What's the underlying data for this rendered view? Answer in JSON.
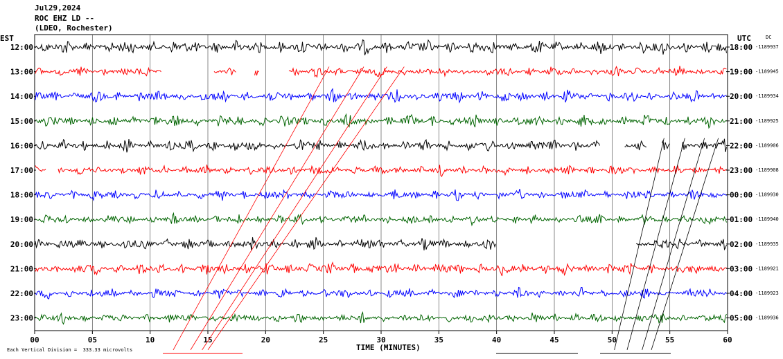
{
  "header": {
    "date": "Jul29,2024",
    "station": "ROC EHZ LD --",
    "network": "(LDEO, Rochester)",
    "left_tz": "EST",
    "right_tz": "UTC",
    "dc_label": "DC"
  },
  "footer": {
    "scale_note": "Each Vertical Division =  333.33 microvolts"
  },
  "chart_data": {
    "type": "line",
    "title": "ROC EHZ LD --",
    "xlabel": "TIME (MINUTES)",
    "xlim": [
      0,
      60
    ],
    "x_ticks": [
      "00",
      "05",
      "10",
      "15",
      "20",
      "25",
      "30",
      "35",
      "40",
      "45",
      "50",
      "55",
      "60"
    ],
    "grid": true,
    "trace_colors": [
      "#000000",
      "#ff0000",
      "#0000ff",
      "#006400"
    ],
    "rows": [
      {
        "est": "12:00",
        "utc": "18:00",
        "dc": "-1189937",
        "color": "#000000",
        "amp": 7,
        "gaps": []
      },
      {
        "est": "13:00",
        "utc": "19:00",
        "dc": "-1189945",
        "color": "#ff0000",
        "amp": 5,
        "gaps": [
          [
            11,
            15.5
          ],
          [
            17.5,
            19
          ],
          [
            19.5,
            22
          ]
        ]
      },
      {
        "est": "14:00",
        "utc": "20:00",
        "dc": "-1189934",
        "color": "#0000ff",
        "amp": 6,
        "gaps": []
      },
      {
        "est": "15:00",
        "utc": "21:00",
        "dc": "-1189925",
        "color": "#006400",
        "amp": 6,
        "gaps": []
      },
      {
        "est": "16:00",
        "utc": "22:00",
        "dc": "-1189906",
        "color": "#000000",
        "amp": 6,
        "gaps": [
          [
            49,
            51
          ],
          [
            53,
            54.3
          ],
          [
            55,
            56
          ]
        ]
      },
      {
        "est": "17:00",
        "utc": "23:00",
        "dc": "-1189908",
        "color": "#ff0000",
        "amp": 5,
        "gaps": [
          [
            1,
            2
          ]
        ]
      },
      {
        "est": "18:00",
        "utc": "00:00",
        "dc": "-1189930",
        "color": "#0000ff",
        "amp": 5,
        "gaps": []
      },
      {
        "est": "19:00",
        "utc": "01:00",
        "dc": "-1189940",
        "color": "#006400",
        "amp": 5,
        "gaps": []
      },
      {
        "est": "20:00",
        "utc": "02:00",
        "dc": "-1189935",
        "color": "#000000",
        "amp": 6,
        "gaps": [
          [
            40,
            52
          ]
        ]
      },
      {
        "est": "21:00",
        "utc": "03:00",
        "dc": "-1189921",
        "color": "#ff0000",
        "amp": 6,
        "gaps": []
      },
      {
        "est": "22:00",
        "utc": "04:00",
        "dc": "-1189923",
        "color": "#0000ff",
        "amp": 5,
        "gaps": []
      },
      {
        "est": "23:00",
        "utc": "05:00",
        "dc": "-1189936",
        "color": "#006400",
        "amp": 5,
        "gaps": []
      }
    ]
  }
}
